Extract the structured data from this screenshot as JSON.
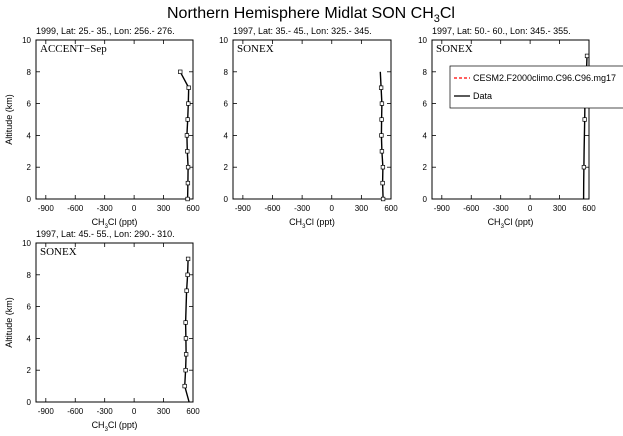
{
  "figure": {
    "title_main": "Northern Hemisphere Midlat SON CH",
    "title_sub": "3",
    "title_end": "Cl",
    "xlabel_main": "CH",
    "xlabel_sub": "3",
    "xlabel_end": "Cl (ppt)",
    "ylabel": "Altitude (km)"
  },
  "legend": {
    "entries": [
      {
        "label": "CESM2.F2000climo.C96.C96.mg17",
        "color": "#ff0000",
        "dash": true
      },
      {
        "label": "Data",
        "color": "#000000",
        "dash": false
      }
    ]
  },
  "chart_data": [
    {
      "type": "line",
      "header": "1999, Lat: 25.- 35., Lon: 256.- 276.",
      "campaign": "ACCENT−Sep",
      "xlim": [
        -1000,
        600
      ],
      "ylim": [
        0,
        10
      ],
      "xticks": [
        -900,
        -600,
        -300,
        0,
        300,
        600
      ],
      "yticks": [
        0,
        2,
        4,
        6,
        8,
        10
      ],
      "series": [
        {
          "name": "Data",
          "x": [
            545,
            548,
            550,
            542,
            538,
            546,
            552,
            556,
            470
          ],
          "y": [
            0,
            1,
            2,
            3,
            4,
            5,
            6,
            7,
            8
          ]
        }
      ],
      "markers": {
        "x": [
          545,
          548,
          550,
          542,
          538,
          546,
          552,
          556,
          470
        ],
        "y": [
          0,
          1,
          2,
          3,
          4,
          5,
          6,
          7,
          8
        ]
      }
    },
    {
      "type": "line",
      "header": "1997, Lat: 35.- 45., Lon: 325.- 345.",
      "campaign": "SONEX",
      "xlim": [
        -1000,
        600
      ],
      "ylim": [
        0,
        10
      ],
      "xticks": [
        -900,
        -600,
        -300,
        0,
        300,
        600
      ],
      "yticks": [
        0,
        2,
        4,
        6,
        8,
        10
      ],
      "series": [
        {
          "name": "Data",
          "x": [
            520,
            515,
            518,
            508,
            503,
            505,
            508,
            500,
            492
          ],
          "y": [
            0,
            1,
            2,
            3,
            4,
            5,
            6,
            7,
            8
          ]
        }
      ],
      "markers": {
        "x": [
          520,
          515,
          518,
          508,
          503,
          505,
          508,
          500
        ],
        "y": [
          0,
          1,
          2,
          3,
          4,
          5,
          6,
          7
        ]
      }
    },
    {
      "type": "line",
      "header": "1997, Lat: 50.- 60., Lon: 345.- 355.",
      "campaign": "SONEX",
      "xlim": [
        -1000,
        600
      ],
      "ylim": [
        0,
        10
      ],
      "xticks": [
        -900,
        -600,
        -300,
        0,
        300,
        600
      ],
      "yticks": [
        0,
        2,
        4,
        6,
        8,
        10
      ],
      "series": [
        {
          "name": "Data",
          "x": [
            545,
            546,
            548,
            550,
            553,
            556,
            558,
            565,
            575,
            580
          ],
          "y": [
            0,
            1,
            2,
            3,
            4,
            5,
            6,
            7,
            8,
            9
          ]
        }
      ],
      "markers": {
        "x": [
          548,
          556,
          558,
          565,
          575,
          580
        ],
        "y": [
          2,
          5,
          6,
          7,
          8,
          9
        ]
      }
    },
    {
      "type": "line",
      "header": "1997, Lat: 45.- 55., Lon: 290.- 310.",
      "campaign": "SONEX",
      "xlim": [
        -1000,
        600
      ],
      "ylim": [
        0,
        10
      ],
      "xticks": [
        -900,
        -600,
        -300,
        0,
        300,
        600
      ],
      "yticks": [
        0,
        2,
        4,
        6,
        8,
        10
      ],
      "series": [
        {
          "name": "Data",
          "x": [
            560,
            515,
            525,
            530,
            528,
            525,
            530,
            535,
            545,
            550
          ],
          "y": [
            0,
            1,
            2,
            3,
            4,
            5,
            6,
            7,
            8,
            9
          ]
        }
      ],
      "markers": {
        "x": [
          515,
          525,
          530,
          528,
          525,
          535,
          545,
          550
        ],
        "y": [
          1,
          2,
          3,
          4,
          5,
          7,
          8,
          9
        ]
      }
    }
  ]
}
